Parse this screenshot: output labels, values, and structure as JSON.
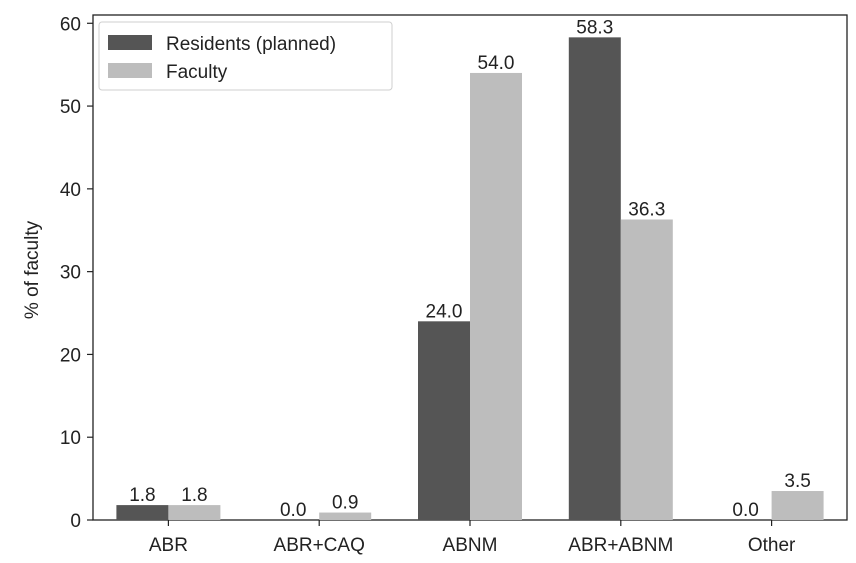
{
  "chart_data": {
    "type": "bar",
    "ylabel": "% of faculty",
    "xlabel": "",
    "ylim": [
      0,
      61
    ],
    "yticks": [
      0,
      10,
      20,
      30,
      40,
      50,
      60
    ],
    "categories": [
      "ABR",
      "ABR+CAQ",
      "ABNM",
      "ABR+ABNM",
      "Other"
    ],
    "series": [
      {
        "name": "Residents (planned)",
        "color": "#555555",
        "values": [
          1.8,
          0.0,
          24.0,
          58.3,
          0.0
        ]
      },
      {
        "name": "Faculty",
        "color": "#bdbdbd",
        "values": [
          1.8,
          0.9,
          54.0,
          36.3,
          3.5
        ]
      }
    ],
    "data_labels": [
      [
        "1.8",
        "0.0",
        "24.0",
        "58.3",
        "0.0"
      ],
      [
        "1.8",
        "0.9",
        "54.0",
        "36.3",
        "3.5"
      ]
    ],
    "legend": {
      "position": "top-left",
      "entries": [
        "Residents (planned)",
        "Faculty"
      ]
    },
    "grid": false
  }
}
